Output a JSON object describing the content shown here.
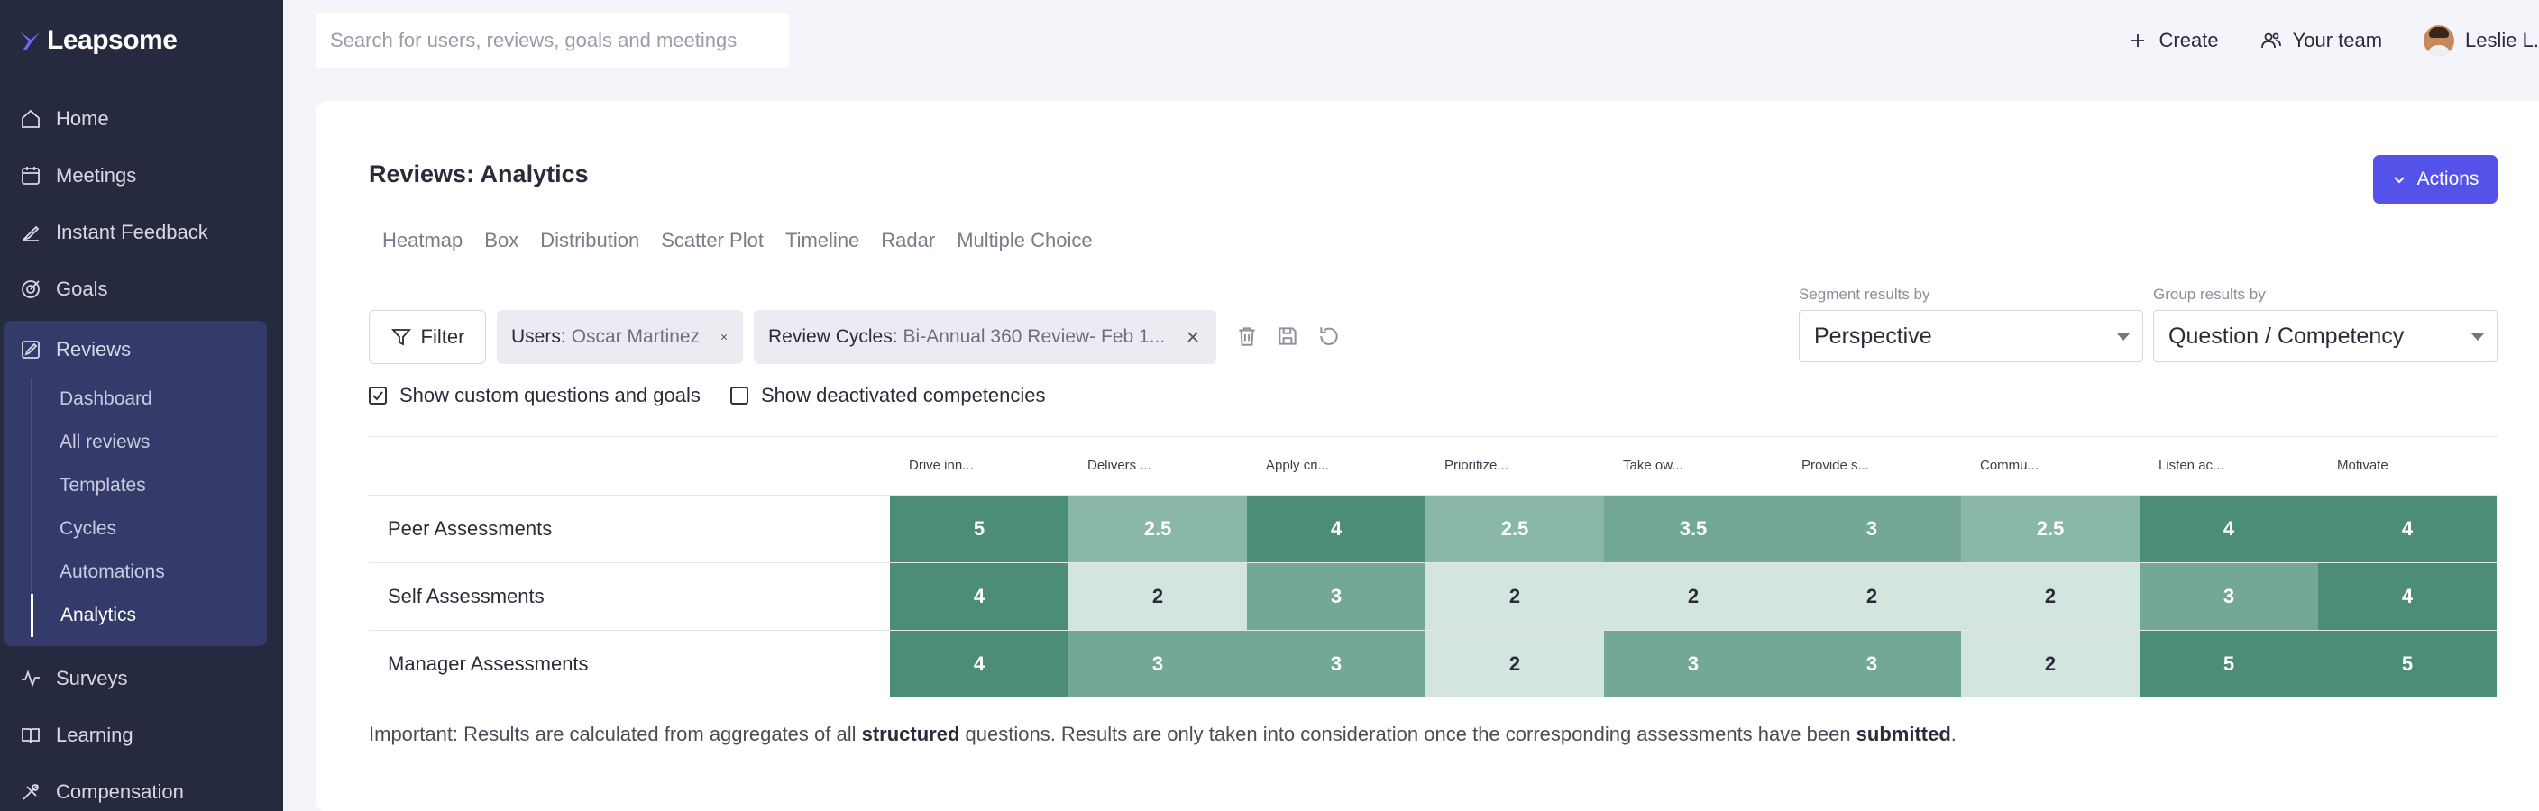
{
  "app": {
    "name": "Leapsome"
  },
  "sidebar": {
    "items": [
      {
        "label": "Home",
        "icon": "home-icon"
      },
      {
        "label": "Meetings",
        "icon": "meetings-icon"
      },
      {
        "label": "Instant Feedback",
        "icon": "feedback-icon"
      },
      {
        "label": "Goals",
        "icon": "goals-icon"
      }
    ],
    "reviews": {
      "label": "Reviews",
      "icon": "reviews-icon",
      "sub": [
        "Dashboard",
        "All reviews",
        "Templates",
        "Cycles",
        "Automations",
        "Analytics"
      ],
      "active": "Analytics"
    },
    "bottom": [
      {
        "label": "Surveys",
        "icon": "surveys-icon"
      },
      {
        "label": "Learning",
        "icon": "learning-icon"
      },
      {
        "label": "Compensation",
        "icon": "compensation-icon"
      }
    ]
  },
  "topbar": {
    "search_placeholder": "Search for users, reviews, goals and meetings",
    "create": "Create",
    "your_team": "Your team",
    "user": "Leslie L."
  },
  "page": {
    "title": "Reviews: Analytics",
    "actions": "Actions",
    "tabs": [
      "Heatmap",
      "Box",
      "Distribution",
      "Scatter Plot",
      "Timeline",
      "Radar",
      "Multiple Choice"
    ]
  },
  "filters": {
    "filter_label": "Filter",
    "chips": [
      {
        "key": "Users:",
        "value": "Oscar Martinez"
      },
      {
        "key": "Review Cycles:",
        "value": "Bi-Annual 360 Review- Feb 1..."
      }
    ],
    "segment_label": "Segment results by",
    "segment_value": "Perspective",
    "group_label": "Group results by",
    "group_value": "Question / Competency",
    "show_custom": "Show custom questions and goals",
    "show_custom_checked": true,
    "show_deactivated": "Show deactivated competencies",
    "show_deactivated_checked": false
  },
  "heatmap": {
    "columns": [
      "Drive inn...",
      "Delivers ...",
      "Apply cri...",
      "Prioritize...",
      "Take ow...",
      "Provide s...",
      "Commu...",
      "Listen ac...",
      "Motivate"
    ],
    "rows": [
      {
        "label": "Peer Assessments",
        "values": [
          "5",
          "2.5",
          "4",
          "2.5",
          "3.5",
          "3",
          "2.5",
          "4",
          "4"
        ]
      },
      {
        "label": "Self Assessments",
        "values": [
          "4",
          "2",
          "3",
          "2",
          "2",
          "2",
          "2",
          "3",
          "4"
        ]
      },
      {
        "label": "Manager Assessments",
        "values": [
          "4",
          "3",
          "3",
          "2",
          "3",
          "3",
          "2",
          "5",
          "5"
        ]
      }
    ],
    "colors": {
      "high": "#4b8e75",
      "mid": "#73a896",
      "midlow": "#8ab8a8",
      "low": "#d2e5de"
    }
  },
  "footnote": {
    "p1": "Important: Results are calculated from aggregates of all ",
    "b1": "structured",
    "p2": " questions. Results are only taken into consideration once the corresponding assessments have been ",
    "b2": "submitted",
    "p3": "."
  }
}
